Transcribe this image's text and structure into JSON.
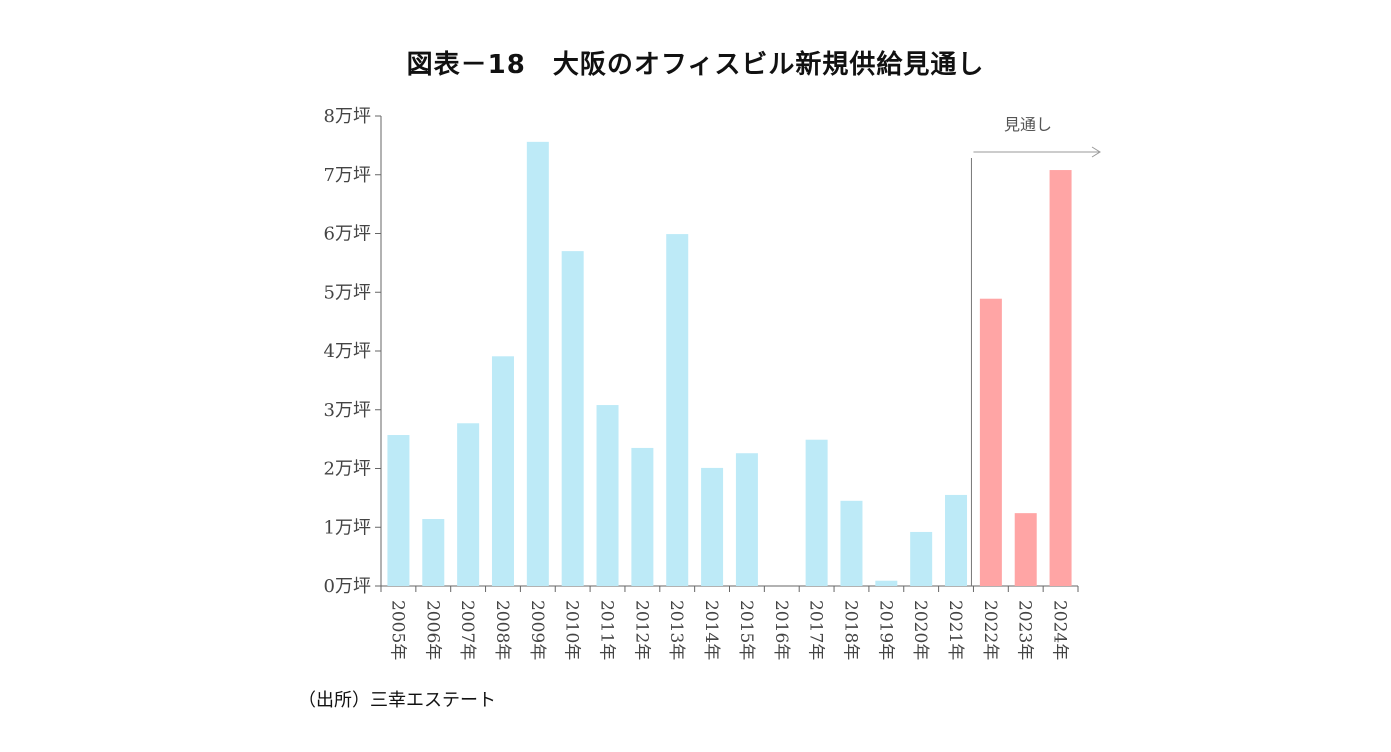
{
  "chart_data": {
    "type": "bar",
    "title": "図表－18　大阪のオフィスビル新規供給見通し",
    "source": "（出所）三幸エステート",
    "categories": [
      "2005年",
      "2006年",
      "2007年",
      "2008年",
      "2009年",
      "2010年",
      "2011年",
      "2012年",
      "2013年",
      "2014年",
      "2015年",
      "2016年",
      "2017年",
      "2018年",
      "2019年",
      "2020年",
      "2021年",
      "2022年",
      "2023年",
      "2024年"
    ],
    "values": [
      2.57,
      1.14,
      2.77,
      3.91,
      7.56,
      5.7,
      3.08,
      2.35,
      5.99,
      2.01,
      2.26,
      0,
      2.49,
      1.45,
      0.09,
      0.92,
      1.55,
      4.89,
      1.24,
      7.08
    ],
    "unit": "万坪",
    "ylim": [
      0,
      8
    ],
    "yticks": [
      "0万坪",
      "1万坪",
      "2万坪",
      "3万坪",
      "4万坪",
      "5万坪",
      "6万坪",
      "7万坪",
      "8万坪"
    ],
    "forecast_start_index": 17,
    "forecast_label": "見通し",
    "colors": {
      "actual": "#bdeaf7",
      "forecast": "#ffa5a5",
      "axis": "#666666"
    },
    "grid": false,
    "legend": "none"
  }
}
